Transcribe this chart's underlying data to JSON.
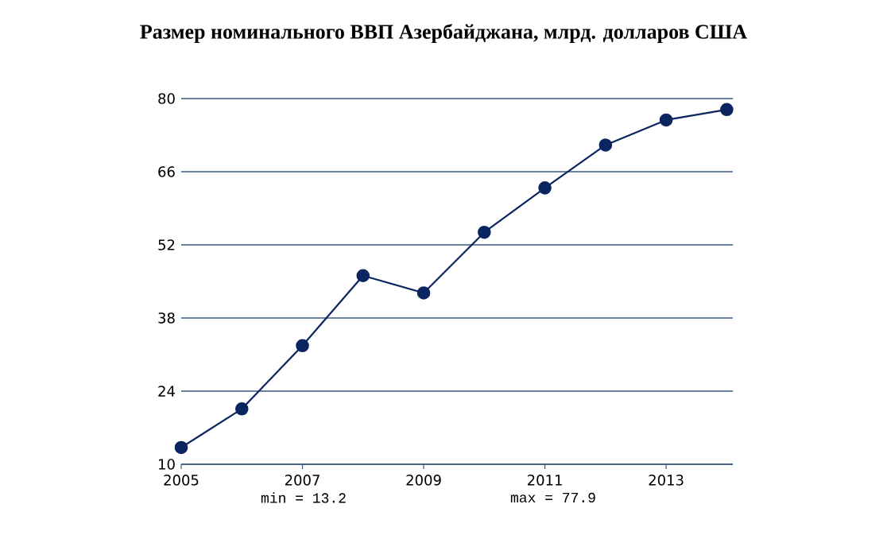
{
  "chart_data": {
    "type": "line",
    "title": "Размер номинального ВВП Азербайджана, млрд. долларов США",
    "x": [
      2005,
      2006,
      2007,
      2008,
      2009,
      2010,
      2011,
      2012,
      2013,
      2014
    ],
    "values": [
      13.2,
      20.6,
      32.7,
      46.1,
      42.8,
      54.4,
      62.9,
      71.1,
      75.9,
      77.9
    ],
    "color": "#0b2560",
    "marker": "circle",
    "line_style": "solid",
    "grid": "y",
    "xlim": [
      2005,
      2014.1
    ],
    "xticks": [
      2005,
      2007,
      2009,
      2011,
      2013
    ],
    "ylim": [
      10,
      80
    ],
    "yticks": [
      10,
      24,
      38,
      52,
      66,
      80
    ],
    "annotations": [
      "min = 13.2",
      "max = 77.9"
    ]
  }
}
